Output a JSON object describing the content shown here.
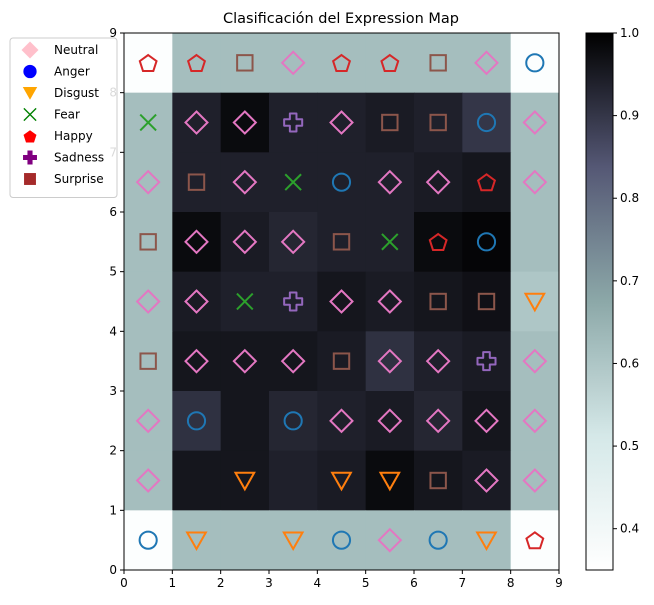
{
  "chart_data": {
    "type": "heatmap",
    "title": "Clasificación del Expression Map",
    "xlabel": "",
    "ylabel": "",
    "xlim": [
      0,
      9
    ],
    "ylim": [
      0,
      9
    ],
    "x_ticks": [
      "0",
      "1",
      "2",
      "3",
      "4",
      "5",
      "6",
      "7",
      "8",
      "9"
    ],
    "y_ticks": [
      "0",
      "1",
      "2",
      "3",
      "4",
      "5",
      "6",
      "7",
      "8",
      "9"
    ],
    "colormap": "bone_r",
    "colorbar": {
      "range": [
        0.35,
        1.0
      ],
      "ticks": [
        "0.4",
        "0.5",
        "0.6",
        "0.7",
        "0.8",
        "0.9",
        "1.0"
      ],
      "tick_values": [
        0.4,
        0.5,
        0.6,
        0.7,
        0.8,
        0.9,
        1.0
      ]
    },
    "heat_values_top_to_bottom": [
      [
        0.36,
        0.62,
        0.62,
        0.62,
        0.62,
        0.62,
        0.62,
        0.62,
        0.36
      ],
      [
        0.62,
        0.94,
        0.98,
        0.94,
        0.94,
        0.95,
        0.94,
        0.9,
        0.62
      ],
      [
        0.62,
        0.94,
        0.94,
        0.94,
        0.94,
        0.94,
        0.95,
        0.96,
        0.62
      ],
      [
        0.62,
        0.98,
        0.95,
        0.93,
        0.94,
        0.94,
        0.98,
        0.99,
        0.62
      ],
      [
        0.62,
        0.95,
        0.94,
        0.94,
        0.96,
        0.95,
        0.96,
        0.97,
        0.6
      ],
      [
        0.62,
        0.96,
        0.96,
        0.96,
        0.95,
        0.91,
        0.94,
        0.95,
        0.62
      ],
      [
        0.62,
        0.91,
        0.96,
        0.93,
        0.94,
        0.95,
        0.93,
        0.96,
        0.62
      ],
      [
        0.62,
        0.96,
        0.96,
        0.94,
        0.95,
        0.98,
        0.96,
        0.95,
        0.62
      ],
      [
        0.36,
        0.62,
        0.62,
        0.62,
        0.62,
        0.62,
        0.62,
        0.62,
        0.36
      ]
    ],
    "markers_top_to_bottom": [
      [
        "Happy",
        "Happy",
        "Surprise",
        "Neutral",
        "Happy",
        "Happy",
        "Surprise",
        "Neutral",
        "Anger"
      ],
      [
        "Fear",
        "Neutral",
        "Neutral",
        "Sadness",
        "Neutral",
        "Surprise",
        "Surprise",
        "Anger",
        "Neutral"
      ],
      [
        "Neutral",
        "Surprise",
        "Neutral",
        "Fear",
        "Anger",
        "Neutral",
        "Neutral",
        "Happy",
        "Neutral"
      ],
      [
        "Surprise",
        "Neutral",
        "Neutral",
        "Neutral",
        "Surprise",
        "Fear",
        "Happy",
        "Anger",
        ""
      ],
      [
        "Neutral",
        "Neutral",
        "Fear",
        "Sadness",
        "Neutral",
        "Neutral",
        "Surprise",
        "Surprise",
        "Disgust"
      ],
      [
        "Surprise",
        "Neutral",
        "Neutral",
        "Neutral",
        "Surprise",
        "Neutral",
        "Neutral",
        "Sadness",
        "Neutral"
      ],
      [
        "Neutral",
        "Anger",
        "",
        "Anger",
        "Neutral",
        "Neutral",
        "Neutral",
        "Neutral",
        "Neutral"
      ],
      [
        "Neutral",
        "",
        "Disgust",
        "",
        "Disgust",
        "Disgust",
        "Surprise",
        "Neutral",
        "Neutral"
      ],
      [
        "Anger",
        "Disgust",
        "",
        "Disgust",
        "Anger",
        "Neutral",
        "Anger",
        "Disgust",
        "Happy"
      ]
    ],
    "legend": {
      "placement": "upper-left outside",
      "entries": [
        {
          "label": "Neutral",
          "marker": "diamond",
          "color": "#ffc0cb"
        },
        {
          "label": "Anger",
          "marker": "circle",
          "color": "#0000ff"
        },
        {
          "label": "Disgust",
          "marker": "triangle-down",
          "color": "#ffa500"
        },
        {
          "label": "Fear",
          "marker": "x",
          "color": "#008000"
        },
        {
          "label": "Happy",
          "marker": "pentagon",
          "color": "#ff0000"
        },
        {
          "label": "Sadness",
          "marker": "plus",
          "color": "#800080"
        },
        {
          "label": "Surprise",
          "marker": "square",
          "color": "#a52a2a"
        }
      ]
    },
    "grid_marker_colors": {
      "Neutral": "#e377c2",
      "Anger": "#1f77b4",
      "Disgust": "#ff7f0e",
      "Fear": "#2ca02c",
      "Happy": "#d62728",
      "Sadness": "#9467bd",
      "Surprise": "#8c564b"
    }
  }
}
